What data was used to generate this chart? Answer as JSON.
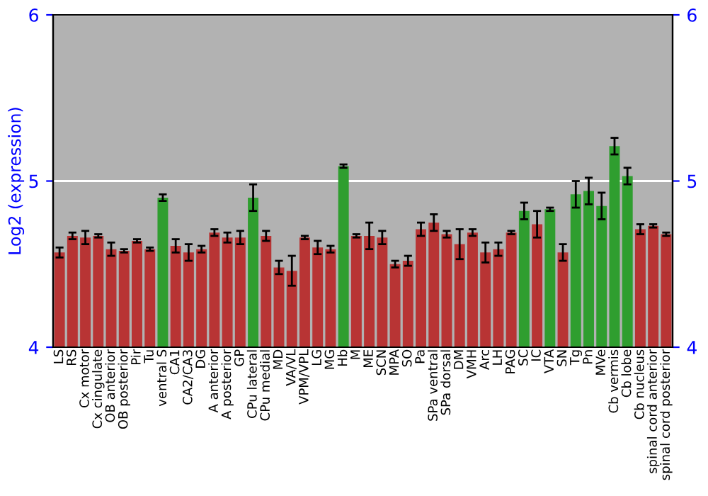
{
  "chart_data": {
    "type": "bar",
    "ylabel": "Log2 (expression)",
    "categories": [
      "LS",
      "RS",
      "Cx motor",
      "Cx cingulate",
      "OB anterior",
      "OB posterior",
      "Pir",
      "Tu",
      "ventral S",
      "CA1",
      "CA2/CA3",
      "DG",
      "A anterior",
      "A posterior",
      "GP",
      "CPu lateral",
      "CPu medial",
      "MD",
      "VA/VL",
      "VPM/VPL",
      "LG",
      "MG",
      "Hb",
      "M",
      "ME",
      "SCN",
      "MPA",
      "SO",
      "Pa",
      "SPa ventral",
      "SPa dorsal",
      "DM",
      "VMH",
      "Arc",
      "LH",
      "PAG",
      "SC",
      "IC",
      "VTA",
      "SN",
      "Tg",
      "Pn",
      "MVe",
      "Cb vermis",
      "Cb lobe",
      "Cb nucleus",
      "spinal cord anterior",
      "spinal cord posterior"
    ],
    "values": [
      4.57,
      4.67,
      4.66,
      4.67,
      4.59,
      4.58,
      4.64,
      4.59,
      4.9,
      4.61,
      4.57,
      4.59,
      4.69,
      4.66,
      4.66,
      4.9,
      4.67,
      4.48,
      4.46,
      4.66,
      4.6,
      4.59,
      5.09,
      4.67,
      4.67,
      4.66,
      4.5,
      4.52,
      4.71,
      4.75,
      4.68,
      4.62,
      4.69,
      4.57,
      4.59,
      4.69,
      4.82,
      4.74,
      4.83,
      4.57,
      4.92,
      4.94,
      4.85,
      5.21,
      5.03,
      4.71,
      4.73,
      4.68
    ],
    "errors": [
      0.03,
      0.02,
      0.04,
      0.01,
      0.04,
      0.01,
      0.01,
      0.01,
      0.02,
      0.04,
      0.05,
      0.02,
      0.02,
      0.03,
      0.04,
      0.08,
      0.03,
      0.04,
      0.09,
      0.01,
      0.04,
      0.02,
      0.01,
      0.01,
      0.08,
      0.04,
      0.02,
      0.03,
      0.04,
      0.05,
      0.02,
      0.09,
      0.02,
      0.06,
      0.04,
      0.01,
      0.05,
      0.08,
      0.01,
      0.05,
      0.08,
      0.08,
      0.08,
      0.05,
      0.05,
      0.03,
      0.01,
      0.01
    ],
    "colors": [
      "#b83434",
      "#b83434",
      "#b83434",
      "#b83434",
      "#b83434",
      "#b83434",
      "#b83434",
      "#b83434",
      "#2f9e2f",
      "#b83434",
      "#b83434",
      "#b83434",
      "#b83434",
      "#b83434",
      "#b83434",
      "#2f9e2f",
      "#b83434",
      "#b83434",
      "#b83434",
      "#b83434",
      "#b83434",
      "#b83434",
      "#2f9e2f",
      "#b83434",
      "#b83434",
      "#b83434",
      "#b83434",
      "#b83434",
      "#b83434",
      "#b83434",
      "#b83434",
      "#b83434",
      "#b83434",
      "#b83434",
      "#b83434",
      "#b83434",
      "#2f9e2f",
      "#b83434",
      "#2f9e2f",
      "#b83434",
      "#2f9e2f",
      "#2f9e2f",
      "#2f9e2f",
      "#2f9e2f",
      "#2f9e2f",
      "#b83434",
      "#b83434",
      "#b83434"
    ],
    "ylim": [
      4,
      6
    ],
    "yticks": [
      4,
      5,
      6
    ],
    "y2lim": [
      4,
      6
    ],
    "y2ticks": [
      4,
      5,
      6
    ],
    "grid": "y"
  }
}
